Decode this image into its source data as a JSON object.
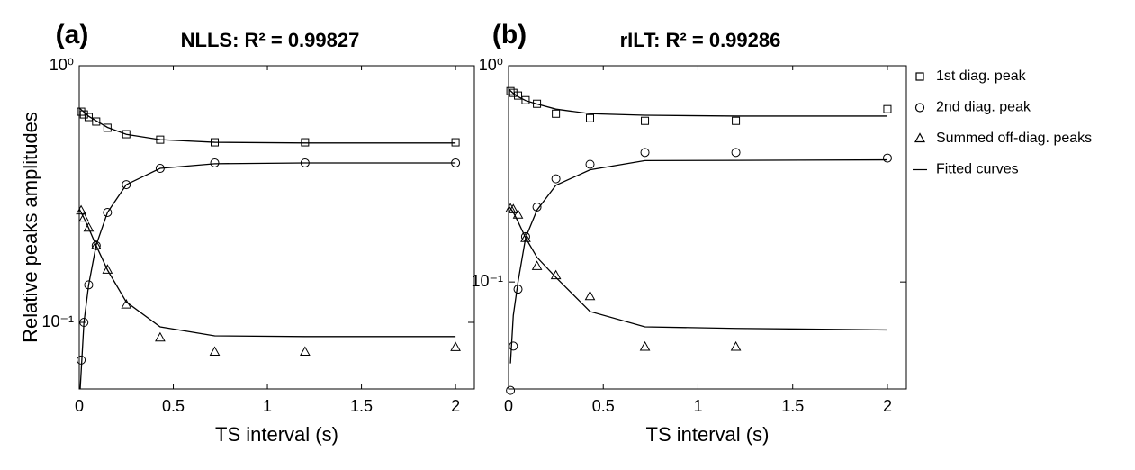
{
  "chart_data": [
    {
      "type": "scatter",
      "panel_label": "(a)",
      "title": "NLLS: R² = 0.99827",
      "x_label": "TS interval (s)",
      "y_label": "Relative peaks amplitudes",
      "log_y": true,
      "xlim": [
        0,
        2.1
      ],
      "ylim": [
        0.055,
        1
      ],
      "xticks": [
        0,
        0.5,
        1,
        1.5,
        2
      ],
      "yticks": [
        {
          "value": 1,
          "label": "10⁰"
        },
        {
          "value": 0.1,
          "label": "10⁻¹"
        }
      ],
      "series": [
        {
          "marker": "square",
          "color": "#000000",
          "x": [
            0.01,
            0.025,
            0.05,
            0.09,
            0.15,
            0.25,
            0.43,
            0.72,
            1.2,
            2.0
          ],
          "values": [
            0.662,
            0.646,
            0.631,
            0.606,
            0.573,
            0.541,
            0.515,
            0.503,
            0.503,
            0.503
          ]
        },
        {
          "marker": "circle",
          "color": "#000000",
          "x": [
            0.01,
            0.025,
            0.05,
            0.09,
            0.15,
            0.25,
            0.43,
            0.72,
            1.2,
            2.0
          ],
          "values": [
            0.0713,
            0.1,
            0.14,
            0.199,
            0.268,
            0.344,
            0.398,
            0.418,
            0.418,
            0.418
          ]
        },
        {
          "marker": "triangle",
          "color": "#000000",
          "x": [
            0.01,
            0.025,
            0.05,
            0.09,
            0.15,
            0.25,
            0.43,
            0.72,
            1.2,
            2.0
          ],
          "values": [
            0.272,
            0.255,
            0.233,
            0.199,
            0.16,
            0.117,
            0.087,
            0.0766,
            0.0766,
            0.0798
          ]
        },
        {
          "marker": "line",
          "color": "#000000",
          "x": [
            0,
            0.025,
            0.05,
            0.09,
            0.15,
            0.25,
            0.43,
            0.72,
            1.2,
            2.0
          ],
          "values": [
            0.684,
            0.66,
            0.635,
            0.61,
            0.575,
            0.54,
            0.515,
            0.503,
            0.5,
            0.5
          ]
        },
        {
          "marker": "line",
          "color": "#000000",
          "x": [
            0.005,
            0.025,
            0.05,
            0.09,
            0.15,
            0.25,
            0.43,
            0.72,
            1.2,
            2.0
          ],
          "values": [
            0.055,
            0.1,
            0.14,
            0.2,
            0.268,
            0.344,
            0.398,
            0.415,
            0.418,
            0.418
          ]
        },
        {
          "marker": "line",
          "color": "#000000",
          "x": [
            0,
            0.025,
            0.05,
            0.09,
            0.15,
            0.25,
            0.43,
            0.72,
            1.2,
            2.0
          ],
          "values": [
            0.277,
            0.255,
            0.233,
            0.199,
            0.16,
            0.12,
            0.096,
            0.0886,
            0.088,
            0.088
          ]
        }
      ]
    },
    {
      "type": "scatter",
      "panel_label": "(b)",
      "title": "rILT: R² = 0.99286",
      "x_label": "TS interval (s)",
      "log_y": true,
      "xlim": [
        0,
        2.1
      ],
      "ylim": [
        0.032,
        1
      ],
      "xticks": [
        0,
        0.5,
        1,
        1.5,
        2
      ],
      "yticks": [
        {
          "value": 1,
          "label": "10⁰"
        },
        {
          "value": 0.1,
          "label": "10⁻¹"
        }
      ],
      "series": [
        {
          "marker": "square",
          "color": "#000000",
          "x": [
            0.01,
            0.025,
            0.05,
            0.09,
            0.15,
            0.25,
            0.43,
            0.72,
            1.2,
            2.0
          ],
          "values": [
            0.763,
            0.749,
            0.728,
            0.693,
            0.667,
            0.6,
            0.572,
            0.556,
            0.556,
            0.63
          ]
        },
        {
          "marker": "circle",
          "color": "#000000",
          "x": [
            0.01,
            0.025,
            0.05,
            0.09,
            0.15,
            0.25,
            0.43,
            0.72,
            1.2,
            2.0
          ],
          "values": [
            0.0315,
            0.0505,
            0.0926,
            0.162,
            0.222,
            0.3,
            0.35,
            0.397,
            0.397,
            0.374
          ]
        },
        {
          "marker": "triangle",
          "color": "#000000",
          "x": [
            0.01,
            0.025,
            0.05,
            0.09,
            0.15,
            0.25,
            0.43,
            0.72,
            1.2,
            2.0
          ],
          "values": [
            0.218,
            0.216,
            0.204,
            0.159,
            0.118,
            0.107,
            0.0857,
            0.05,
            0.05,
            null
          ]
        },
        {
          "marker": "line",
          "color": "#000000",
          "x": [
            0,
            0.025,
            0.05,
            0.09,
            0.15,
            0.25,
            0.43,
            0.72,
            1.2,
            2.0
          ],
          "values": [
            0.78,
            0.745,
            0.72,
            0.69,
            0.665,
            0.63,
            0.6,
            0.59,
            0.585,
            0.585
          ]
        },
        {
          "marker": "line",
          "color": "#000000",
          "x": [
            0.01,
            0.025,
            0.05,
            0.09,
            0.15,
            0.25,
            0.43,
            0.72,
            1.2,
            2.0
          ],
          "values": [
            0.042,
            0.07,
            0.1,
            0.16,
            0.215,
            0.28,
            0.33,
            0.364,
            0.365,
            0.367
          ]
        },
        {
          "marker": "line",
          "color": "#000000",
          "x": [
            0,
            0.025,
            0.05,
            0.09,
            0.15,
            0.25,
            0.43,
            0.72,
            1.2,
            2.0
          ],
          "values": [
            0.225,
            0.21,
            0.19,
            0.16,
            0.13,
            0.105,
            0.073,
            0.062,
            0.061,
            0.06
          ]
        }
      ]
    }
  ],
  "legend": {
    "entries": [
      {
        "label": "1st diag. peak",
        "marker": "square"
      },
      {
        "label": "2nd diag. peak",
        "marker": "circle"
      },
      {
        "label": "Summed off-diag. peaks",
        "marker": "triangle"
      },
      {
        "label": "Fitted curves",
        "marker": "line"
      }
    ]
  }
}
